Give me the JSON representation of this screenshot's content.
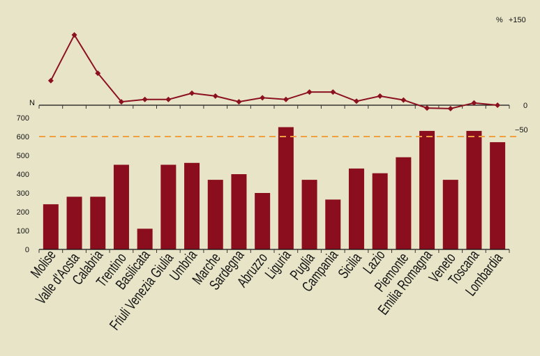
{
  "chart_data": [
    {
      "type": "line",
      "ylabel": "%",
      "ylim": [
        -50,
        150
      ],
      "yticks": [
        "+150",
        "0",
        "−50"
      ],
      "color": "#8b1020",
      "categories": [
        "Molise",
        "Valle d'Aosta",
        "Calabria",
        "Trentino",
        "Basilicata",
        "Friuli Venezia Giulia",
        "Umbria",
        "Marche",
        "Sardegna",
        "Abruzzo",
        "Liguria",
        "Puglia",
        "Campania",
        "Sicilia",
        "Lazio",
        "Piemonte",
        "Emilia Romagna",
        "Veneto",
        "Toscana",
        "Lombardia"
      ],
      "values": [
        43,
        123,
        56,
        6,
        10,
        10,
        21,
        16,
        6,
        13,
        10,
        23,
        23,
        7,
        16,
        9,
        -5,
        -6,
        4,
        0
      ]
    },
    {
      "type": "bar",
      "ylabel": "N",
      "ylim": [
        0,
        700
      ],
      "yticks": [
        "0",
        "100",
        "200",
        "300",
        "400",
        "500",
        "600",
        "700"
      ],
      "color": "#8b0e1e",
      "reference_line": {
        "value": 600,
        "style": "dashed",
        "color": "#f0a040"
      },
      "categories": [
        "Molise",
        "Valle d'Aosta",
        "Calabria",
        "Trentino",
        "Basilicata",
        "Friuli Venezia Giulia",
        "Umbria",
        "Marche",
        "Sardegna",
        "Abruzzo",
        "Liguria",
        "Puglia",
        "Campania",
        "Sicilia",
        "Lazio",
        "Piemonte",
        "Emilia Romagna",
        "Veneto",
        "Toscana",
        "Lombardia"
      ],
      "values": [
        240,
        280,
        280,
        450,
        110,
        450,
        460,
        370,
        400,
        300,
        650,
        370,
        265,
        430,
        405,
        490,
        630,
        370,
        630,
        570
      ]
    }
  ]
}
